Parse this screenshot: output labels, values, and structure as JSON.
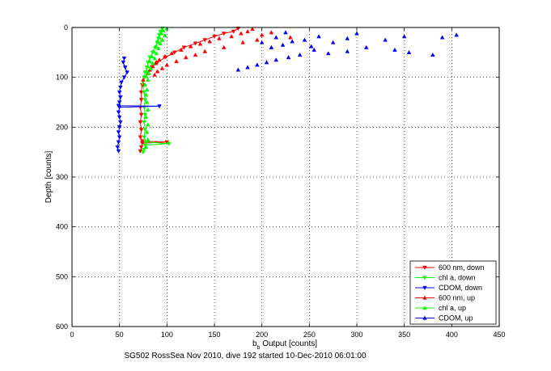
{
  "chart_data": {
    "type": "scatter",
    "xlabel_main": "b",
    "xlabel_sub": "b",
    "xlabel_rest": " Output [counts]",
    "ylabel": "Depth [counts]",
    "caption": "SG502 RossSea Nov 2010, dive 192 started 10-Dec-2010 06:01:00",
    "xlim": [
      0,
      450
    ],
    "ylim": [
      0,
      600
    ],
    "y_reversed": true,
    "grid": true,
    "legend_position": "bottom-right",
    "x_ticks": [
      0,
      50,
      100,
      150,
      200,
      250,
      300,
      350,
      400,
      450
    ],
    "y_ticks": [
      0,
      100,
      200,
      300,
      400,
      500,
      600
    ],
    "series": [
      {
        "name": "600 nm, down",
        "color": "#ff0000",
        "marker": "triangle-down",
        "connected": true,
        "points": [
          [
            175,
            2
          ],
          [
            170,
            8
          ],
          [
            160,
            12
          ],
          [
            150,
            18
          ],
          [
            140,
            25
          ],
          [
            130,
            32
          ],
          [
            118,
            40
          ],
          [
            108,
            50
          ],
          [
            98,
            60
          ],
          [
            90,
            70
          ],
          [
            84,
            80
          ],
          [
            80,
            90
          ],
          [
            76,
            100
          ],
          [
            74,
            115
          ],
          [
            73,
            130
          ],
          [
            73,
            145
          ],
          [
            72,
            160
          ],
          [
            73,
            175
          ],
          [
            72,
            190
          ],
          [
            73,
            205
          ],
          [
            72,
            220
          ],
          [
            74,
            228
          ],
          [
            100,
            230
          ],
          [
            74,
            232
          ],
          [
            73,
            240
          ],
          [
            72,
            248
          ]
        ]
      },
      {
        "name": "chl a, down",
        "color": "#00ff00",
        "marker": "triangle-down",
        "connected": true,
        "points": [
          [
            95,
            2
          ],
          [
            93,
            8
          ],
          [
            92,
            15
          ],
          [
            91,
            22
          ],
          [
            90,
            30
          ],
          [
            88,
            40
          ],
          [
            85,
            50
          ],
          [
            82,
            60
          ],
          [
            80,
            70
          ],
          [
            79,
            80
          ],
          [
            77,
            90
          ],
          [
            76,
            100
          ],
          [
            75,
            115
          ],
          [
            76,
            130
          ],
          [
            77,
            145
          ],
          [
            76,
            160
          ],
          [
            77,
            175
          ],
          [
            76,
            190
          ],
          [
            77,
            205
          ],
          [
            76,
            220
          ],
          [
            78,
            230
          ],
          [
            102,
            233
          ],
          [
            77,
            236
          ],
          [
            76,
            245
          ],
          [
            75,
            250
          ]
        ]
      },
      {
        "name": "CDOM, down",
        "color": "#0000ff",
        "marker": "triangle-down",
        "connected": true,
        "points": [
          [
            55,
            62
          ],
          [
            54,
            70
          ],
          [
            56,
            80
          ],
          [
            58,
            90
          ],
          [
            55,
            100
          ],
          [
            52,
            110
          ],
          [
            51,
            120
          ],
          [
            50,
            130
          ],
          [
            51,
            140
          ],
          [
            50,
            150
          ],
          [
            49,
            157
          ],
          [
            92,
            158
          ],
          [
            50,
            160
          ],
          [
            49,
            170
          ],
          [
            50,
            180
          ],
          [
            51,
            190
          ],
          [
            50,
            200
          ],
          [
            49,
            210
          ],
          [
            50,
            220
          ],
          [
            49,
            230
          ],
          [
            48,
            240
          ],
          [
            49,
            248
          ]
        ]
      },
      {
        "name": "600 nm, up",
        "color": "#ff0000",
        "marker": "triangle-up",
        "connected": false,
        "points": [
          [
            190,
            3
          ],
          [
            185,
            8
          ],
          [
            178,
            12
          ],
          [
            200,
            15
          ],
          [
            168,
            18
          ],
          [
            210,
            10
          ],
          [
            155,
            22
          ],
          [
            195,
            25
          ],
          [
            145,
            28
          ],
          [
            230,
            20
          ],
          [
            135,
            33
          ],
          [
            180,
            30
          ],
          [
            125,
            38
          ],
          [
            160,
            40
          ],
          [
            115,
            45
          ],
          [
            140,
            48
          ],
          [
            105,
            52
          ],
          [
            130,
            55
          ],
          [
            98,
            58
          ],
          [
            120,
            60
          ],
          [
            92,
            65
          ],
          [
            110,
            68
          ],
          [
            88,
            72
          ],
          [
            100,
            75
          ],
          [
            85,
            78
          ],
          [
            95,
            82
          ],
          [
            82,
            85
          ],
          [
            90,
            88
          ],
          [
            80,
            92
          ],
          [
            87,
            95
          ],
          [
            78,
            98
          ],
          [
            75,
            105
          ],
          [
            76,
            115
          ]
        ]
      },
      {
        "name": "chl a, up",
        "color": "#00ff00",
        "marker": "triangle-up",
        "connected": false,
        "points": [
          [
            100,
            2
          ],
          [
            96,
            6
          ],
          [
            94,
            12
          ],
          [
            98,
            16
          ],
          [
            92,
            20
          ],
          [
            95,
            25
          ],
          [
            90,
            28
          ],
          [
            93,
            32
          ],
          [
            88,
            38
          ],
          [
            91,
            42
          ],
          [
            86,
            48
          ],
          [
            89,
            52
          ],
          [
            84,
            58
          ],
          [
            87,
            62
          ],
          [
            82,
            68
          ],
          [
            85,
            72
          ],
          [
            80,
            78
          ],
          [
            83,
            82
          ],
          [
            79,
            88
          ],
          [
            81,
            92
          ],
          [
            78,
            98
          ],
          [
            80,
            105
          ],
          [
            77,
            115
          ],
          [
            79,
            125
          ],
          [
            78,
            135
          ],
          [
            79,
            150
          ],
          [
            80,
            165
          ],
          [
            78,
            180
          ],
          [
            80,
            195
          ],
          [
            79,
            210
          ],
          [
            80,
            225
          ],
          [
            78,
            240
          ]
        ]
      },
      {
        "name": "CDOM, up",
        "color": "#0000ff",
        "marker": "triangle-up",
        "connected": false,
        "points": [
          [
            405,
            15
          ],
          [
            390,
            20
          ],
          [
            350,
            18
          ],
          [
            330,
            25
          ],
          [
            300,
            12
          ],
          [
            290,
            22
          ],
          [
            275,
            30
          ],
          [
            260,
            18
          ],
          [
            252,
            38
          ],
          [
            245,
            25
          ],
          [
            232,
            28
          ],
          [
            225,
            10
          ],
          [
            222,
            35
          ],
          [
            215,
            20
          ],
          [
            210,
            40
          ],
          [
            200,
            30
          ],
          [
            380,
            55
          ],
          [
            355,
            50
          ],
          [
            340,
            45
          ],
          [
            310,
            40
          ],
          [
            290,
            48
          ],
          [
            270,
            52
          ],
          [
            255,
            45
          ],
          [
            240,
            55
          ],
          [
            228,
            60
          ],
          [
            215,
            65
          ],
          [
            205,
            70
          ],
          [
            195,
            75
          ],
          [
            185,
            80
          ],
          [
            175,
            85
          ]
        ]
      }
    ]
  }
}
